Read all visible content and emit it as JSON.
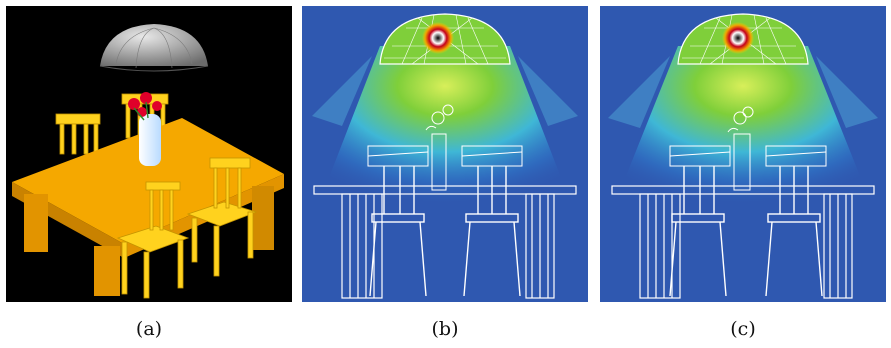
{
  "figure": {
    "captions": [
      "(a)",
      "(b)",
      "(c)"
    ],
    "colors": {
      "scene_background": "#000000",
      "table": "#f5a800",
      "chair": "#ffd21e",
      "lamp_shade": "#9a9a9a",
      "flowers": "#e0002a",
      "vase": "#e8f4ff",
      "render_background": "#2f58b0",
      "light_glow": "#7fcf3a",
      "light_hotspot": "#c4001a",
      "wireframe": "#ffffff"
    }
  }
}
